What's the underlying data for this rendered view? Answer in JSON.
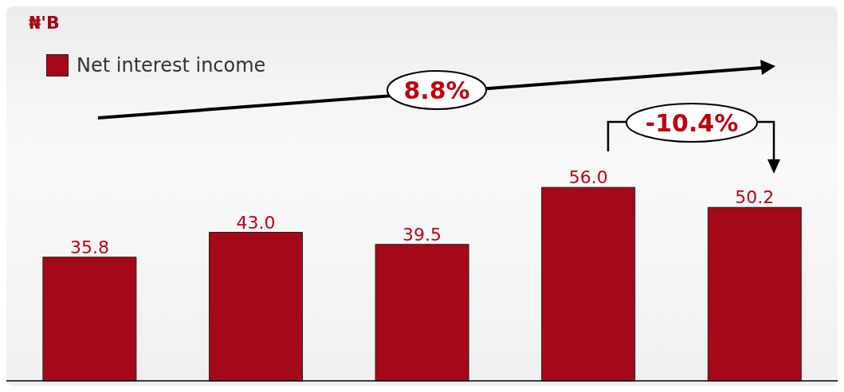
{
  "chart_data": {
    "type": "bar",
    "categories": [
      null,
      null,
      null,
      null,
      null
    ],
    "series": [
      {
        "name": "Net interest income",
        "color": "#a50818",
        "values": [
          35.8,
          43.0,
          39.5,
          56.0,
          50.2
        ],
        "value_labels": [
          "35.8",
          "43.0",
          "39.5",
          "56.0",
          "50.2"
        ]
      }
    ],
    "legend": "top left",
    "grid": false,
    "annotations": [
      "₦'B",
      "8.8%",
      "-10.4%"
    ]
  }
}
